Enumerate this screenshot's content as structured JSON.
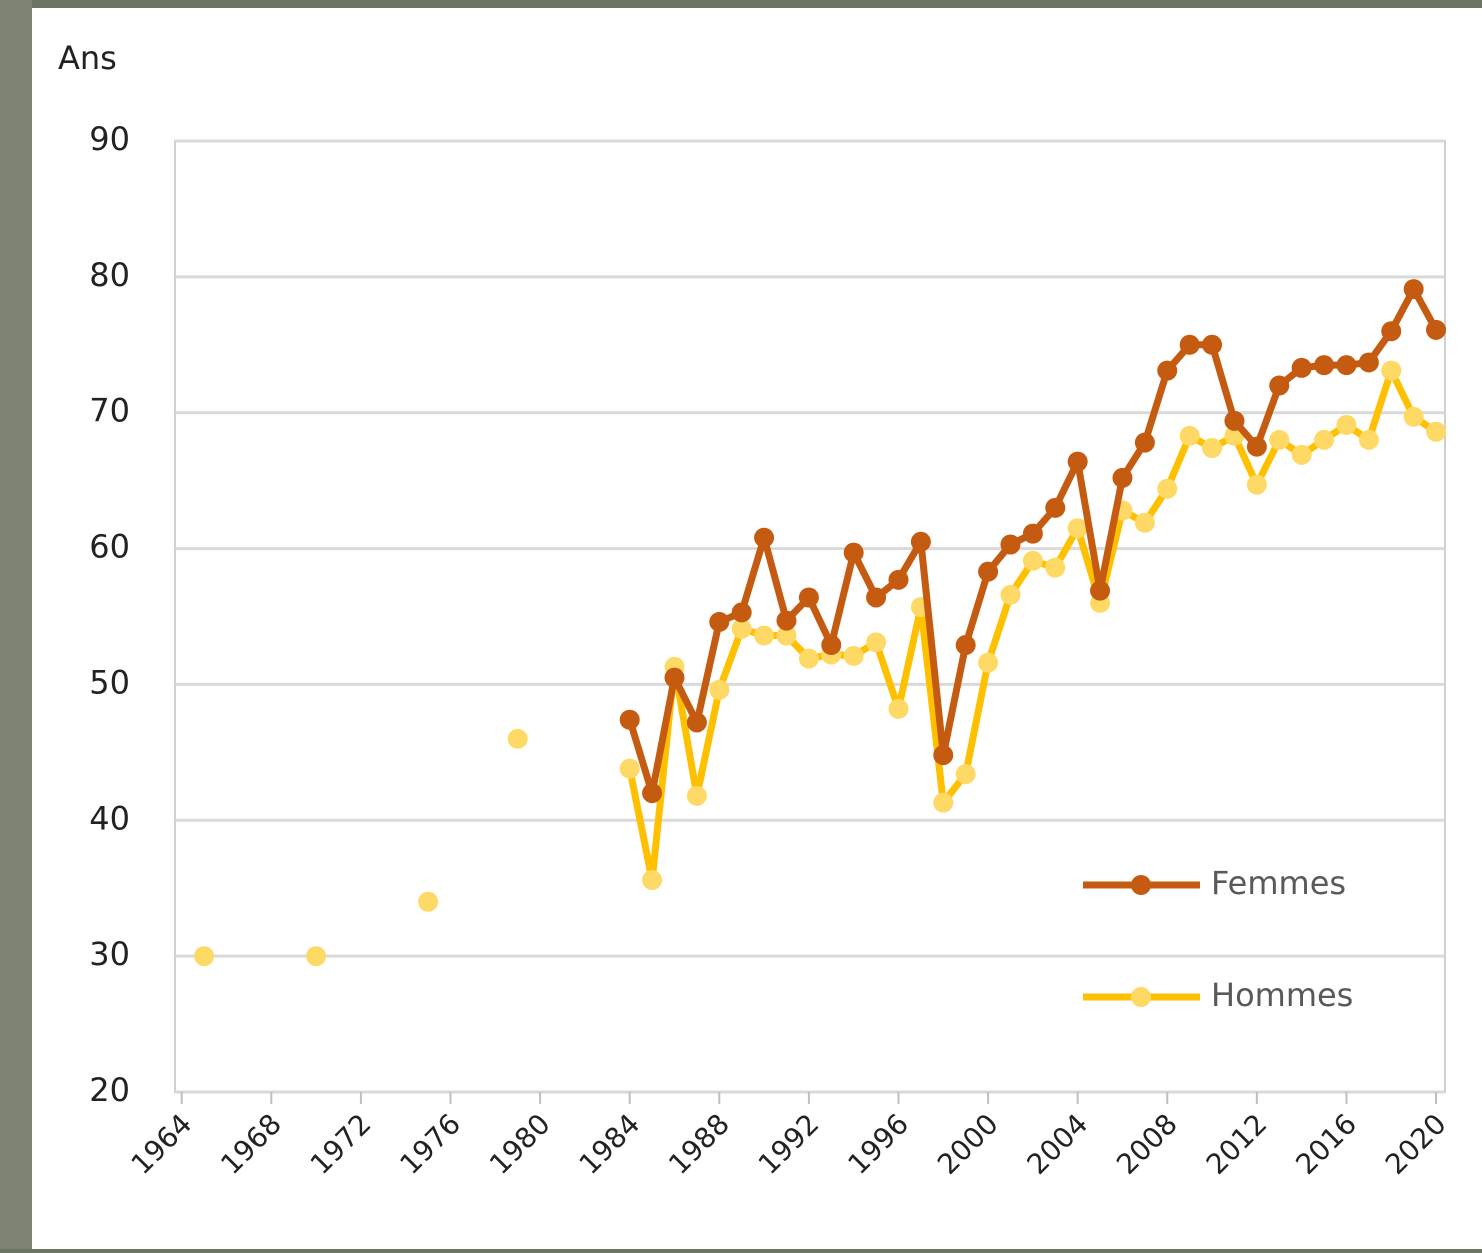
{
  "chart_data": {
    "type": "line",
    "y_label": "Ans",
    "x": [
      1965,
      1966,
      1967,
      1968,
      1969,
      1970,
      1971,
      1972,
      1973,
      1974,
      1975,
      1976,
      1977,
      1978,
      1979,
      1980,
      1981,
      1982,
      1983,
      1984,
      1985,
      1986,
      1987,
      1988,
      1989,
      1990,
      1991,
      1992,
      1993,
      1994,
      1995,
      1996,
      1997,
      1998,
      1999,
      2000,
      2001,
      2002,
      2003,
      2004,
      2005,
      2006,
      2007,
      2008,
      2009,
      2010,
      2011,
      2012,
      2013,
      2014,
      2015,
      2016,
      2017,
      2018,
      2019,
      2020
    ],
    "series": [
      {
        "name": "Femmes",
        "color": "#c55a11",
        "marker_color": "#c55a11",
        "values": [
          null,
          null,
          null,
          null,
          null,
          null,
          null,
          null,
          null,
          null,
          null,
          null,
          null,
          null,
          null,
          null,
          null,
          null,
          null,
          47.4,
          42.0,
          50.5,
          47.2,
          54.6,
          55.3,
          60.8,
          54.7,
          56.4,
          52.9,
          59.7,
          56.4,
          57.7,
          60.5,
          44.8,
          52.9,
          58.3,
          60.3,
          61.1,
          63.0,
          66.4,
          56.9,
          65.2,
          67.8,
          73.1,
          75.0,
          75.0,
          69.4,
          67.5,
          72.0,
          73.3,
          73.5,
          73.5,
          73.7,
          76.0,
          79.1,
          76.1
        ]
      },
      {
        "name": "Hommes",
        "color": "#ffc000",
        "marker_color": "#ffd966",
        "values": [
          30,
          null,
          null,
          null,
          null,
          30,
          null,
          null,
          null,
          null,
          34,
          null,
          null,
          null,
          46,
          null,
          null,
          null,
          null,
          43.8,
          35.6,
          51.3,
          41.8,
          49.6,
          54.1,
          53.6,
          53.6,
          51.9,
          52.2,
          52.1,
          53.1,
          48.2,
          55.7,
          41.3,
          43.4,
          51.6,
          56.6,
          59.1,
          58.6,
          61.5,
          56.0,
          62.8,
          61.9,
          64.4,
          68.3,
          67.4,
          68.3,
          64.7,
          68.0,
          66.9,
          68.0,
          69.1,
          68.0,
          73.1,
          69.7,
          68.6
        ]
      }
    ],
    "xlim": [
      1963.7,
      2020.4
    ],
    "xticks": [
      1964,
      1968,
      1972,
      1976,
      1980,
      1984,
      1988,
      1992,
      1996,
      2000,
      2004,
      2008,
      2012,
      2016,
      2020
    ],
    "ylim": [
      20,
      90
    ],
    "yticks": [
      20,
      30,
      40,
      50,
      60,
      70,
      80,
      90
    ],
    "grid": true,
    "legend": "lower right"
  }
}
